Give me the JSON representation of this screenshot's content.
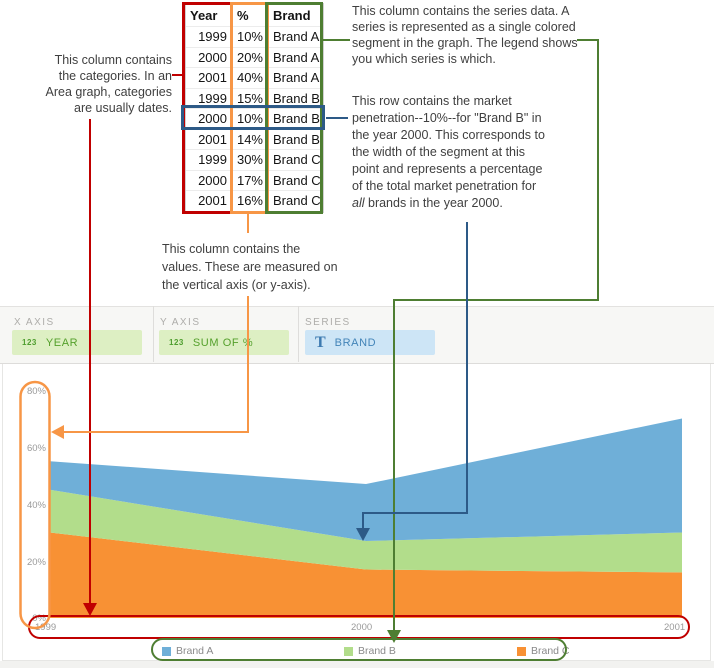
{
  "table": {
    "headers": [
      "Year",
      "%",
      "Brand"
    ],
    "rows": [
      [
        "1999",
        "10%",
        "Brand A"
      ],
      [
        "2000",
        "20%",
        "Brand A"
      ],
      [
        "2001",
        "40%",
        "Brand A"
      ],
      [
        "1999",
        "15%",
        "Brand B"
      ],
      [
        "2000",
        "10%",
        "Brand B"
      ],
      [
        "2001",
        "14%",
        "Brand B"
      ],
      [
        "1999",
        "30%",
        "Brand C"
      ],
      [
        "2000",
        "17%",
        "Brand C"
      ],
      [
        "2001",
        "16%",
        "Brand C"
      ]
    ],
    "highlighted_row_index": 4
  },
  "annotations": {
    "categories": {
      "lines": [
        "This column contains",
        "the categories. In an",
        "Area graph, categories",
        "are usually dates."
      ]
    },
    "series": {
      "lines": [
        "This column contains the series data. A",
        "series is represented as a single colored",
        "segment in the graph. The legend shows",
        "you which series is which."
      ]
    },
    "row": {
      "lines": [
        "This row contains the market",
        "penetration--10%--for \"Brand B\" in",
        "the year 2000. This corresponds to",
        "the width of the segment at this",
        "point and represents a percentage",
        "of the total market penetration for",
        {
          "em": "all",
          "t": " brands in the year 2000."
        }
      ]
    },
    "values": {
      "lines": [
        "This column contains the",
        "values. These are measured on",
        "the vertical axis (or y-axis)."
      ]
    }
  },
  "toolbar": {
    "x_axis": {
      "label": "X AXIS",
      "icon": "123",
      "field": "YEAR"
    },
    "y_axis": {
      "label": "Y AXIS",
      "icon": "123",
      "field": "SUM OF %"
    },
    "series": {
      "label": "SERIES",
      "icon": "T",
      "field": "BRAND"
    }
  },
  "chart_data": {
    "type": "area",
    "stacked": true,
    "x": [
      1999,
      2000,
      2001
    ],
    "x_tick_labels": [
      "1999",
      "2000",
      "2001"
    ],
    "y_tick_labels": [
      "80%",
      "60%",
      "40%",
      "20%",
      "0%"
    ],
    "ylim": [
      0,
      80
    ],
    "grid": false,
    "legend_position": "bottom",
    "series": [
      {
        "name": "Brand C",
        "color": "#f89134",
        "values": [
          30,
          17,
          16
        ]
      },
      {
        "name": "Brand B",
        "color": "#b2dd8b",
        "values": [
          15,
          10,
          14
        ]
      },
      {
        "name": "Brand A",
        "color": "#6fafd8",
        "values": [
          10,
          20,
          40
        ]
      }
    ],
    "legend": [
      {
        "label": "Brand A",
        "color": "#6fafd8"
      },
      {
        "label": "Brand B",
        "color": "#b2dd8b"
      },
      {
        "label": "Brand C",
        "color": "#f89134"
      }
    ]
  },
  "colors": {
    "categories_outline": "#c00000",
    "values_outline": "#f79646",
    "series_outline": "#4e7e32",
    "row_outline": "#2d5a87"
  }
}
